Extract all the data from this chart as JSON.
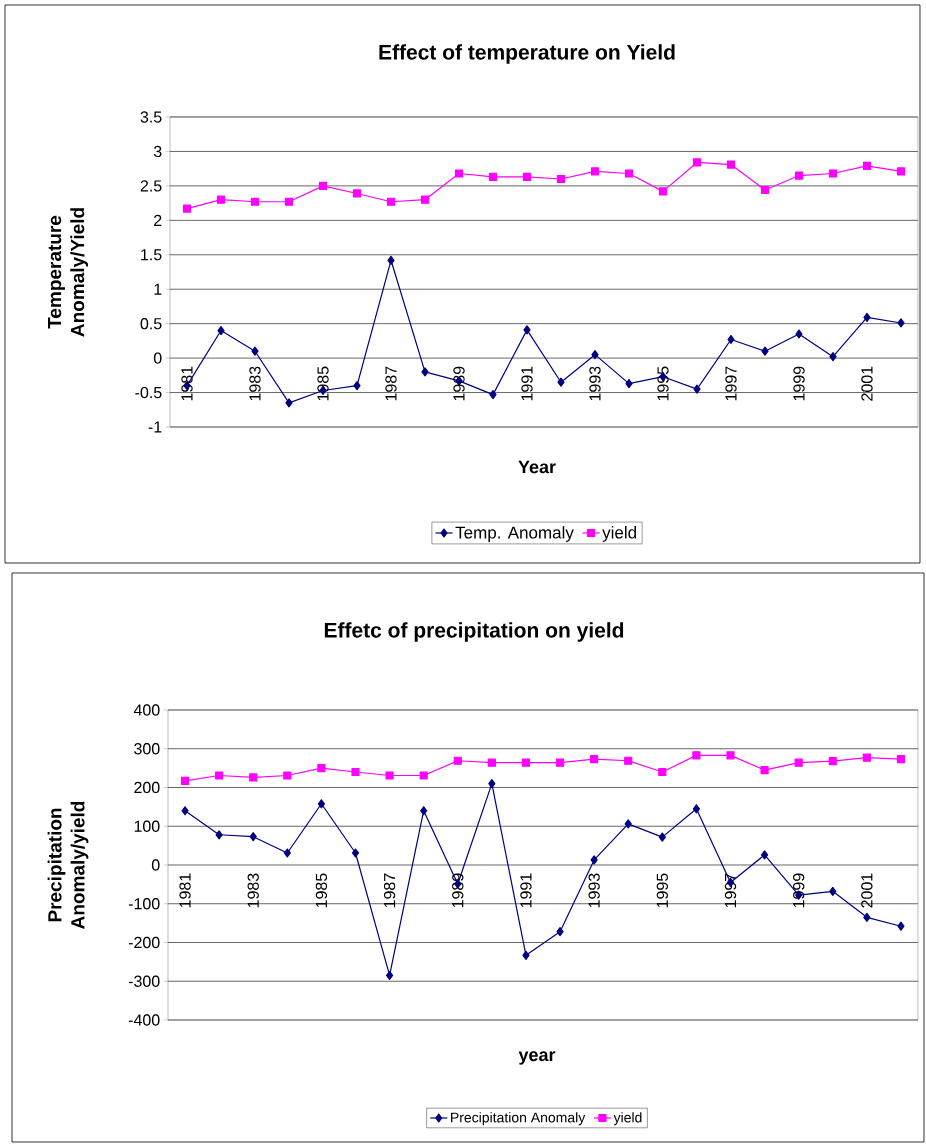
{
  "chart_data": [
    {
      "type": "line",
      "title": "Effect of temperature on Yield",
      "xlabel": "Year",
      "ylabel": "Temperature Anomaly/Yield",
      "categories": [
        "1981",
        null,
        "1983",
        null,
        "1985",
        null,
        "1987",
        null,
        "1989",
        null,
        "1991",
        null,
        "1993",
        null,
        "1995",
        null,
        "1997",
        null,
        "1999",
        null,
        "2001",
        null
      ],
      "series": [
        {
          "name": "Temp. Anomaly",
          "color": "#000080",
          "marker": "diamond",
          "values": [
            -0.4,
            0.4,
            0.1,
            -0.65,
            -0.47,
            -0.4,
            1.42,
            -0.2,
            -0.33,
            -0.53,
            0.41,
            -0.35,
            0.05,
            -0.37,
            -0.27,
            -0.45,
            0.27,
            0.1,
            0.35,
            0.02,
            0.59,
            0.51
          ]
        },
        {
          "name": "yield",
          "color": "#ff00ff",
          "marker": "square",
          "values": [
            2.17,
            2.3,
            2.27,
            2.27,
            2.5,
            2.39,
            2.27,
            2.3,
            2.68,
            2.63,
            2.63,
            2.6,
            2.71,
            2.68,
            2.42,
            2.84,
            2.81,
            2.44,
            2.65,
            2.68,
            2.79,
            2.71
          ]
        }
      ],
      "ylim": [
        -1,
        3.5
      ],
      "yticks": [
        -1,
        -0.5,
        0,
        0.5,
        1,
        1.5,
        2,
        2.5,
        3,
        3.5
      ],
      "grid": "y",
      "legend": "bottom"
    },
    {
      "type": "line",
      "title": "Effetc of precipitation on yield",
      "xlabel": "year",
      "ylabel": "Precipitation Anomaly/yield",
      "categories": [
        "1981",
        null,
        "1983",
        null,
        "1985",
        null,
        "1987",
        null,
        "1989",
        null,
        "1991",
        null,
        "1993",
        null,
        "1995",
        null,
        "1997",
        null,
        "1999",
        null,
        "2001",
        null
      ],
      "series": [
        {
          "name": "Precipitation Anomaly",
          "color": "#000080",
          "marker": "diamond",
          "values": [
            140,
            78,
            73,
            31,
            158,
            31,
            -285,
            140,
            -49,
            210,
            -233,
            -172,
            13,
            106,
            72,
            145,
            -45,
            26,
            -78,
            -68,
            -135,
            -158
          ]
        },
        {
          "name": "yield",
          "color": "#ff00ff",
          "marker": "square",
          "values": [
            217,
            231,
            226,
            231,
            250,
            240,
            231,
            231,
            269,
            264,
            264,
            264,
            273,
            269,
            240,
            283,
            283,
            245,
            264,
            268,
            277,
            273
          ]
        }
      ],
      "ylim": [
        -400,
        400
      ],
      "yticks": [
        -400,
        -300,
        -200,
        -100,
        0,
        100,
        200,
        300,
        400
      ],
      "grid": "y",
      "legend": "bottom"
    }
  ]
}
